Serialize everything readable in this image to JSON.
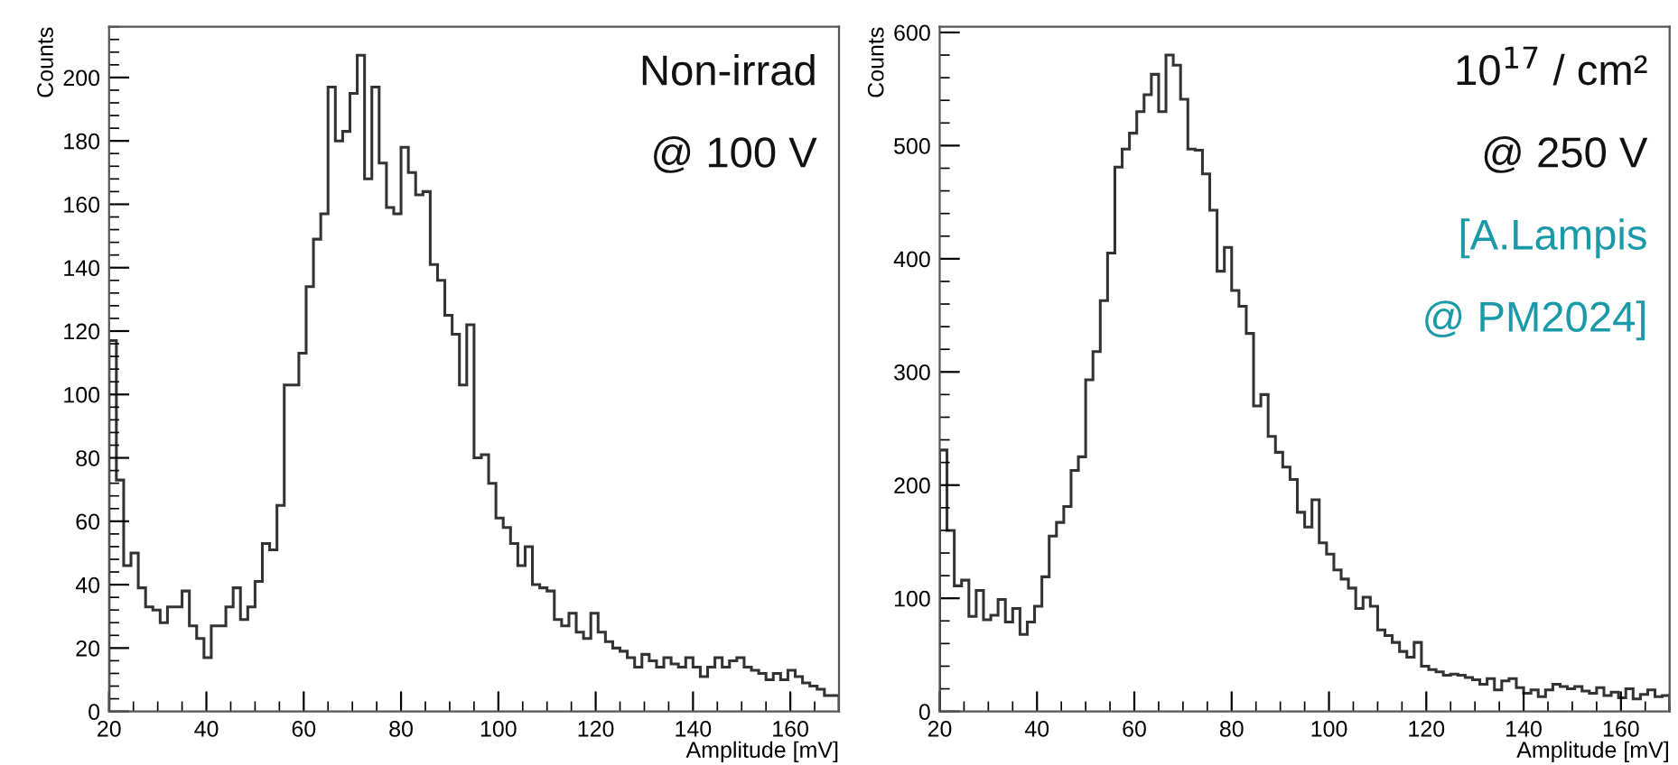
{
  "chart_data": [
    {
      "type": "histogram",
      "xlabel": "Amplitude [mV]",
      "ylabel": "Counts",
      "color": "#333333",
      "annotations": [
        "Non-irrad",
        "@ 100 V"
      ],
      "bins": [
        20,
        21.5,
        23,
        24.5,
        26,
        27.5,
        29,
        30.5,
        32,
        33.5,
        35,
        36.5,
        38,
        39.5,
        41,
        42.5,
        44,
        45.5,
        47,
        48.5,
        50,
        51.5,
        53,
        54.5,
        56,
        57.5,
        59,
        60.5,
        62,
        63.5,
        65,
        66.5,
        68,
        69.5,
        71,
        72.5,
        74,
        75.5,
        77,
        78.5,
        80,
        81.5,
        83,
        84.5,
        86,
        87.5,
        89,
        90.5,
        92,
        93.5,
        95,
        96.5,
        98,
        99.5,
        101,
        102.5,
        104,
        105.5,
        107,
        108.5,
        110,
        111.5,
        113,
        114.5,
        116,
        117.5,
        119,
        120.5,
        122,
        123.5,
        125,
        126.5,
        128,
        129.5,
        131,
        132.5,
        134,
        135.5,
        137,
        138.5,
        140,
        141.5,
        143,
        144.5,
        146,
        147.5,
        149,
        150.5,
        152,
        153.5,
        155,
        156.5,
        158,
        159.5,
        161,
        162.5,
        164,
        165.5,
        167,
        168.5,
        170
      ],
      "values": [
        117,
        73,
        46,
        50,
        39,
        33,
        32,
        28,
        33,
        33,
        38,
        27,
        23,
        17,
        27,
        27,
        33,
        39,
        29,
        33,
        41,
        53,
        51,
        65,
        103,
        103,
        113,
        134,
        149,
        157,
        197,
        180,
        183,
        195,
        207,
        168,
        197,
        173,
        159,
        157,
        178,
        170,
        163,
        164,
        141,
        136,
        125,
        119,
        103,
        122,
        80,
        81,
        72,
        61,
        58,
        53,
        46,
        52,
        40,
        39,
        38,
        29,
        27,
        31,
        25,
        23,
        31,
        25,
        22,
        20,
        19,
        17,
        14,
        18,
        16,
        14,
        17,
        15,
        14,
        17,
        14,
        11,
        14,
        17,
        14,
        16,
        17,
        14,
        13,
        12,
        10,
        12,
        10,
        13,
        11,
        9,
        8,
        7,
        5,
        5
      ],
      "xlim": [
        20,
        170
      ],
      "xticks": [
        20,
        40,
        60,
        80,
        100,
        120,
        140,
        160
      ],
      "ylim": [
        0,
        216
      ],
      "yticks": [
        0,
        20,
        40,
        60,
        80,
        100,
        120,
        140,
        160,
        180,
        200
      ],
      "grid": false
    },
    {
      "type": "histogram",
      "xlabel": "Amplitude [mV]",
      "ylabel": "Counts",
      "color": "#333333",
      "annotations": [
        "10$^{17}$ / cm²",
        "@ 250 V",
        "[A.Lampis",
        "@ PM2024]"
      ],
      "bins": [
        20,
        21.5,
        23,
        24.5,
        26,
        27.5,
        29,
        30.5,
        32,
        33.5,
        35,
        36.5,
        38,
        39.5,
        41,
        42.5,
        44,
        45.5,
        47,
        48.5,
        50,
        51.5,
        53,
        54.5,
        56,
        57.5,
        59,
        60.5,
        62,
        63.5,
        65,
        66.5,
        68,
        69.5,
        71,
        72.5,
        74,
        75.5,
        77,
        78.5,
        80,
        81.5,
        83,
        84.5,
        86,
        87.5,
        89,
        90.5,
        92,
        93.5,
        95,
        96.5,
        98,
        99.5,
        101,
        102.5,
        104,
        105.5,
        107,
        108.5,
        110,
        111.5,
        113,
        114.5,
        116,
        117.5,
        119,
        120.5,
        122,
        123.5,
        125,
        126.5,
        128,
        129.5,
        131,
        132.5,
        134,
        135.5,
        137,
        138.5,
        140,
        141.5,
        143,
        144.5,
        146,
        147.5,
        149,
        150.5,
        152,
        153.5,
        155,
        156.5,
        158,
        159.5,
        161,
        162.5,
        164,
        165.5,
        167,
        168.5,
        170
      ],
      "values": [
        231,
        160,
        111,
        116,
        84,
        107,
        81,
        85,
        99,
        79,
        91,
        68,
        79,
        93,
        119,
        155,
        167,
        181,
        213,
        225,
        293,
        318,
        363,
        405,
        481,
        497,
        511,
        530,
        545,
        563,
        530,
        580,
        571,
        541,
        497,
        496,
        475,
        443,
        389,
        410,
        372,
        358,
        334,
        270,
        280,
        243,
        229,
        216,
        205,
        176,
        163,
        187,
        149,
        139,
        125,
        117,
        109,
        91,
        101,
        93,
        72,
        67,
        61,
        53,
        48,
        61,
        40,
        37,
        35,
        32,
        33,
        32,
        30,
        28,
        24,
        29,
        19,
        27,
        29,
        21,
        16,
        19,
        13,
        19,
        24,
        22,
        20,
        22,
        18,
        16,
        21,
        14,
        17,
        12,
        20,
        11,
        15,
        19,
        13,
        14
      ],
      "xlim": [
        20,
        170
      ],
      "xticks": [
        20,
        40,
        60,
        80,
        100,
        120,
        140,
        160
      ],
      "ylim": [
        0,
        605
      ],
      "yticks": [
        0,
        100,
        200,
        300,
        400,
        500,
        600
      ],
      "grid": false
    }
  ]
}
